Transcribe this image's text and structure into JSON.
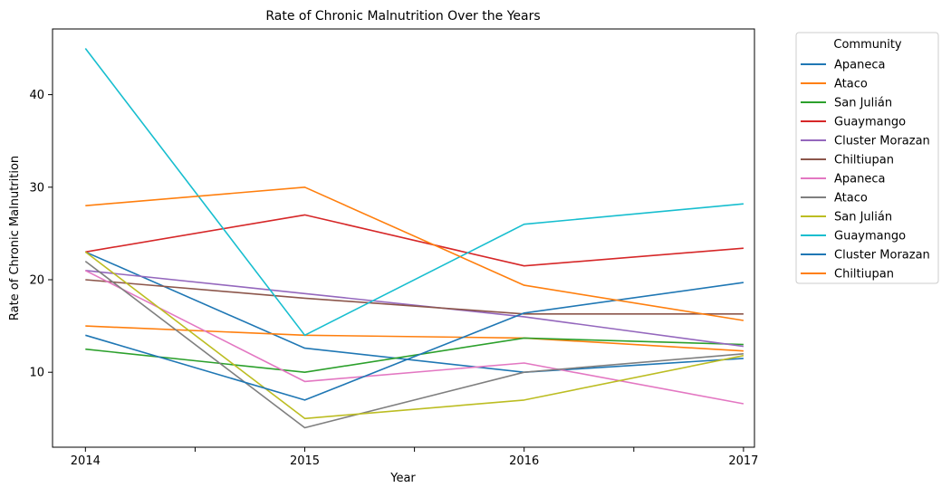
{
  "chart_data": {
    "type": "line",
    "title": "Rate of Chronic Malnutrition Over the Years",
    "xlabel": "Year",
    "ylabel": "Rate of Chronic Malnutrition",
    "x": [
      2014,
      2015,
      2016,
      2017
    ],
    "x_tick_labels": [
      "2014",
      "2015",
      "2016",
      "2017"
    ],
    "xlim": [
      2013.85,
      2017.05
    ],
    "y_ticks": [
      10,
      20,
      30,
      40
    ],
    "ylim": [
      1.9,
      47.1
    ],
    "grid": false,
    "legend": {
      "title": "Community",
      "placement": "outside-upper-right"
    },
    "series": [
      {
        "name": "Apaneca",
        "color": "#1f77b4",
        "values": [
          23.0,
          12.6,
          10.0,
          11.5
        ]
      },
      {
        "name": "Ataco",
        "color": "#ff7f0e",
        "values": [
          15.0,
          14.0,
          13.7,
          12.3
        ]
      },
      {
        "name": "San Julián",
        "color": "#2ca02c",
        "values": [
          12.5,
          10.0,
          13.7,
          13.0
        ]
      },
      {
        "name": "Guaymango",
        "color": "#d62728",
        "values": [
          23.0,
          27.0,
          21.5,
          23.4
        ]
      },
      {
        "name": "Cluster Morazan",
        "color": "#9467bd",
        "values": [
          21.0,
          18.5,
          16.0,
          12.8
        ]
      },
      {
        "name": "Chiltiupan",
        "color": "#8c564b",
        "values": [
          20.0,
          18.0,
          16.3,
          16.3
        ]
      },
      {
        "name": "Apaneca",
        "color": "#e377c2",
        "values": [
          21.0,
          9.0,
          11.0,
          6.6
        ]
      },
      {
        "name": "Ataco",
        "color": "#7f7f7f",
        "values": [
          22.0,
          4.0,
          10.0,
          12.0
        ]
      },
      {
        "name": "San Julián",
        "color": "#bcbd22",
        "values": [
          23.0,
          5.0,
          7.0,
          11.8
        ]
      },
      {
        "name": "Guaymango",
        "color": "#17becf",
        "values": [
          45.0,
          14.0,
          26.0,
          28.2
        ]
      },
      {
        "name": "Cluster Morazan",
        "color": "#1f77b4",
        "values": [
          14.0,
          7.0,
          16.4,
          19.7
        ]
      },
      {
        "name": "Chiltiupan",
        "color": "#ff7f0e",
        "values": [
          28.0,
          30.0,
          19.4,
          15.6
        ]
      }
    ]
  }
}
